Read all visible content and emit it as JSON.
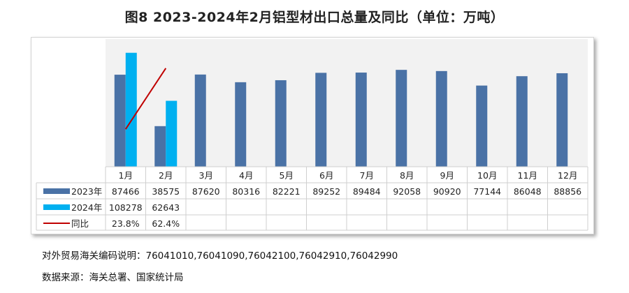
{
  "title": "图8 2023-2024年2月铝型材出口总量及同比（单位：万吨）",
  "footnotes": {
    "codes": "对外贸易海关编码说明：76041010,76041090,76042100,76042910,76042990",
    "source": "数据来源：海关总署、国家统计局"
  },
  "colors": {
    "s2023": "#4a72a6",
    "s2024": "#00b0f0",
    "yoy": "#c00000"
  },
  "chart_data": {
    "type": "bar",
    "categories": [
      "1月",
      "2月",
      "3月",
      "4月",
      "5月",
      "6月",
      "7月",
      "8月",
      "9月",
      "10月",
      "11月",
      "12月"
    ],
    "series": [
      {
        "name": "2023年",
        "kind": "bar",
        "values": [
          87466,
          38575,
          87620,
          80316,
          82221,
          89252,
          89484,
          92058,
          90920,
          77144,
          86048,
          88856
        ],
        "labels": [
          "87466",
          "38575",
          "87620",
          "80316",
          "82221",
          "89252",
          "89484",
          "92058",
          "90920",
          "77144",
          "86048",
          "88856"
        ]
      },
      {
        "name": "2024年",
        "kind": "bar",
        "values": [
          108278,
          62643,
          null,
          null,
          null,
          null,
          null,
          null,
          null,
          null,
          null,
          null
        ],
        "labels": [
          "108278",
          "62643",
          "",
          "",
          "",
          "",
          "",
          "",
          "",
          "",
          "",
          ""
        ]
      },
      {
        "name": "同比",
        "kind": "line",
        "values": [
          23.8,
          62.4,
          null,
          null,
          null,
          null,
          null,
          null,
          null,
          null,
          null,
          null
        ],
        "labels": [
          "23.8%",
          "62.4%",
          "",
          "",
          "",
          "",
          "",
          "",
          "",
          "",
          "",
          ""
        ]
      }
    ],
    "legend": "data-table",
    "grid": false
  }
}
